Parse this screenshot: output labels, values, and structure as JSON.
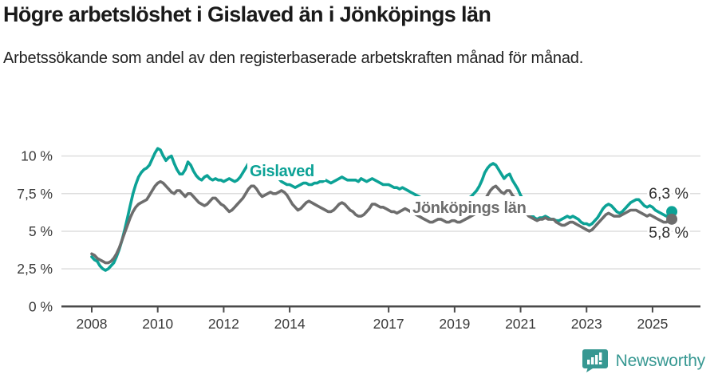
{
  "header": {
    "title": "Högre arbetslöshet i Gislaved än i Jönköpings län",
    "subtitle": "Arbetssökande som andel av den registerbaserade arbetskraften månad för månad."
  },
  "footer": {
    "brand": "Newsworthy",
    "logo_icon": "bar-chart-speech-bubble-icon"
  },
  "colors": {
    "gislaved_line": "#0ca296",
    "jonkoping_line": "#6d6d6d",
    "gridline": "#dedede",
    "axis": "#4a4a4a",
    "tick_label": "#3a3a3a",
    "end_label_text": "#2b2b2b",
    "brand_teal": "#379892",
    "title_text": "#1a1a1a"
  },
  "chart_data": {
    "type": "line",
    "title": "Högre arbetslöshet i Gislaved än i Jönköpings län",
    "subtitle": "Arbetssökande som andel av den registerbaserade arbetskraften månad för månad.",
    "unit": "%",
    "x_start_year": 2008,
    "x_start_month": 1,
    "x_step": "month",
    "x_end_label_year": 2025,
    "ylim": [
      0,
      10.8
    ],
    "grid": "horizontal",
    "y_ticks": [
      {
        "value": 0,
        "label": "0 %"
      },
      {
        "value": 2.5,
        "label": "2,5 %"
      },
      {
        "value": 5,
        "label": "5 %"
      },
      {
        "value": 7.5,
        "label": "7,5 %"
      },
      {
        "value": 10,
        "label": "10 %"
      }
    ],
    "x_ticks": [
      {
        "year": 2008,
        "label": "2008"
      },
      {
        "year": 2010,
        "label": "2010"
      },
      {
        "year": 2012,
        "label": "2012"
      },
      {
        "year": 2014,
        "label": "2014"
      },
      {
        "year": 2017,
        "label": "2017"
      },
      {
        "year": 2019,
        "label": "2019"
      },
      {
        "year": 2021,
        "label": "2021"
      },
      {
        "year": 2023,
        "label": "2023"
      },
      {
        "year": 2025,
        "label": "2025"
      }
    ],
    "series": [
      {
        "name": "Gislaved",
        "color": "#0ca296",
        "end_value_label": "6,3 %",
        "values": [
          3.3,
          3.1,
          3.0,
          2.7,
          2.5,
          2.4,
          2.5,
          2.7,
          2.9,
          3.3,
          3.8,
          4.4,
          5.1,
          5.9,
          6.7,
          7.5,
          8.1,
          8.6,
          8.9,
          9.1,
          9.2,
          9.4,
          9.8,
          10.2,
          10.5,
          10.4,
          10.0,
          9.7,
          9.9,
          10.0,
          9.5,
          9.1,
          8.8,
          8.8,
          9.1,
          9.6,
          9.4,
          9.0,
          8.7,
          8.5,
          8.4,
          8.6,
          8.7,
          8.5,
          8.4,
          8.5,
          8.4,
          8.4,
          8.3,
          8.4,
          8.5,
          8.4,
          8.3,
          8.4,
          8.6,
          8.9,
          9.2,
          9.5,
          9.3,
          9.1,
          9.0,
          8.9,
          8.8,
          8.8,
          8.7,
          8.8,
          8.8,
          8.6,
          8.5,
          8.3,
          8.2,
          8.1,
          8.1,
          8.0,
          7.9,
          8.0,
          8.1,
          8.2,
          8.2,
          8.1,
          8.1,
          8.2,
          8.2,
          8.3,
          8.3,
          8.4,
          8.3,
          8.2,
          8.3,
          8.4,
          8.5,
          8.6,
          8.5,
          8.4,
          8.4,
          8.4,
          8.4,
          8.3,
          8.5,
          8.4,
          8.3,
          8.4,
          8.5,
          8.4,
          8.3,
          8.2,
          8.1,
          8.1,
          8.1,
          8.0,
          7.9,
          7.9,
          7.8,
          7.9,
          7.8,
          7.7,
          7.6,
          7.5,
          7.4,
          7.3,
          7.2,
          7.1,
          7.0,
          6.9,
          6.8,
          6.8,
          6.9,
          6.8,
          6.7,
          6.6,
          6.7,
          6.8,
          6.8,
          6.9,
          6.9,
          7.0,
          7.1,
          7.2,
          7.3,
          7.5,
          7.7,
          8.0,
          8.4,
          8.9,
          9.2,
          9.4,
          9.5,
          9.4,
          9.1,
          8.8,
          8.5,
          8.7,
          8.8,
          8.4,
          8.1,
          7.8,
          7.4,
          7.1,
          6.8,
          6.4,
          6.1,
          5.9,
          5.8,
          5.9,
          5.9,
          6.0,
          5.9,
          5.8,
          5.8,
          5.7,
          5.7,
          5.8,
          5.9,
          6.0,
          5.9,
          6.0,
          5.9,
          5.8,
          5.6,
          5.5,
          5.5,
          5.4,
          5.5,
          5.7,
          5.9,
          6.2,
          6.5,
          6.7,
          6.8,
          6.7,
          6.5,
          6.3,
          6.2,
          6.3,
          6.5,
          6.7,
          6.9,
          7.0,
          7.1,
          7.1,
          6.9,
          6.7,
          6.6,
          6.7,
          6.6,
          6.4,
          6.3,
          6.2,
          6.1,
          6.0,
          6.1,
          6.3
        ]
      },
      {
        "name": "Jönköpings län",
        "color": "#6d6d6d",
        "end_value_label": "5,8 %",
        "values": [
          3.5,
          3.4,
          3.2,
          3.1,
          3.0,
          2.9,
          2.9,
          3.0,
          3.2,
          3.5,
          3.9,
          4.4,
          4.9,
          5.4,
          5.9,
          6.3,
          6.6,
          6.8,
          6.9,
          7.0,
          7.1,
          7.4,
          7.7,
          8.0,
          8.2,
          8.3,
          8.2,
          8.0,
          7.8,
          7.6,
          7.5,
          7.7,
          7.7,
          7.5,
          7.3,
          7.5,
          7.5,
          7.3,
          7.1,
          6.9,
          6.8,
          6.7,
          6.8,
          7.0,
          7.2,
          7.2,
          7.0,
          6.8,
          6.7,
          6.5,
          6.3,
          6.4,
          6.6,
          6.8,
          7.0,
          7.2,
          7.5,
          7.8,
          8.0,
          8.0,
          7.8,
          7.5,
          7.3,
          7.4,
          7.5,
          7.6,
          7.5,
          7.5,
          7.6,
          7.7,
          7.6,
          7.4,
          7.1,
          6.8,
          6.6,
          6.4,
          6.5,
          6.7,
          6.9,
          7.0,
          6.9,
          6.8,
          6.7,
          6.6,
          6.5,
          6.4,
          6.3,
          6.3,
          6.4,
          6.6,
          6.8,
          6.9,
          6.8,
          6.6,
          6.4,
          6.3,
          6.1,
          6.0,
          6.0,
          6.1,
          6.3,
          6.5,
          6.8,
          6.8,
          6.7,
          6.6,
          6.6,
          6.5,
          6.4,
          6.3,
          6.3,
          6.2,
          6.3,
          6.4,
          6.5,
          6.4,
          6.3,
          6.2,
          6.1,
          6.0,
          5.9,
          5.8,
          5.7,
          5.6,
          5.6,
          5.7,
          5.8,
          5.8,
          5.7,
          5.6,
          5.6,
          5.7,
          5.7,
          5.6,
          5.6,
          5.7,
          5.8,
          5.9,
          6.0,
          6.1,
          6.2,
          6.4,
          6.7,
          7.1,
          7.4,
          7.7,
          7.9,
          8.0,
          7.8,
          7.6,
          7.5,
          7.7,
          7.7,
          7.4,
          7.2,
          7.0,
          6.8,
          6.5,
          6.2,
          6.0,
          5.9,
          5.8,
          5.7,
          5.8,
          5.8,
          5.9,
          5.8,
          5.8,
          5.8,
          5.6,
          5.5,
          5.4,
          5.4,
          5.5,
          5.6,
          5.6,
          5.5,
          5.4,
          5.3,
          5.2,
          5.1,
          5.0,
          5.1,
          5.3,
          5.5,
          5.7,
          5.9,
          6.1,
          6.2,
          6.1,
          6.0,
          6.0,
          6.0,
          6.1,
          6.2,
          6.3,
          6.4,
          6.4,
          6.4,
          6.3,
          6.2,
          6.1,
          6.0,
          6.1,
          6.0,
          5.9,
          5.8,
          5.7,
          5.6,
          5.6,
          5.7,
          5.8
        ]
      }
    ]
  }
}
